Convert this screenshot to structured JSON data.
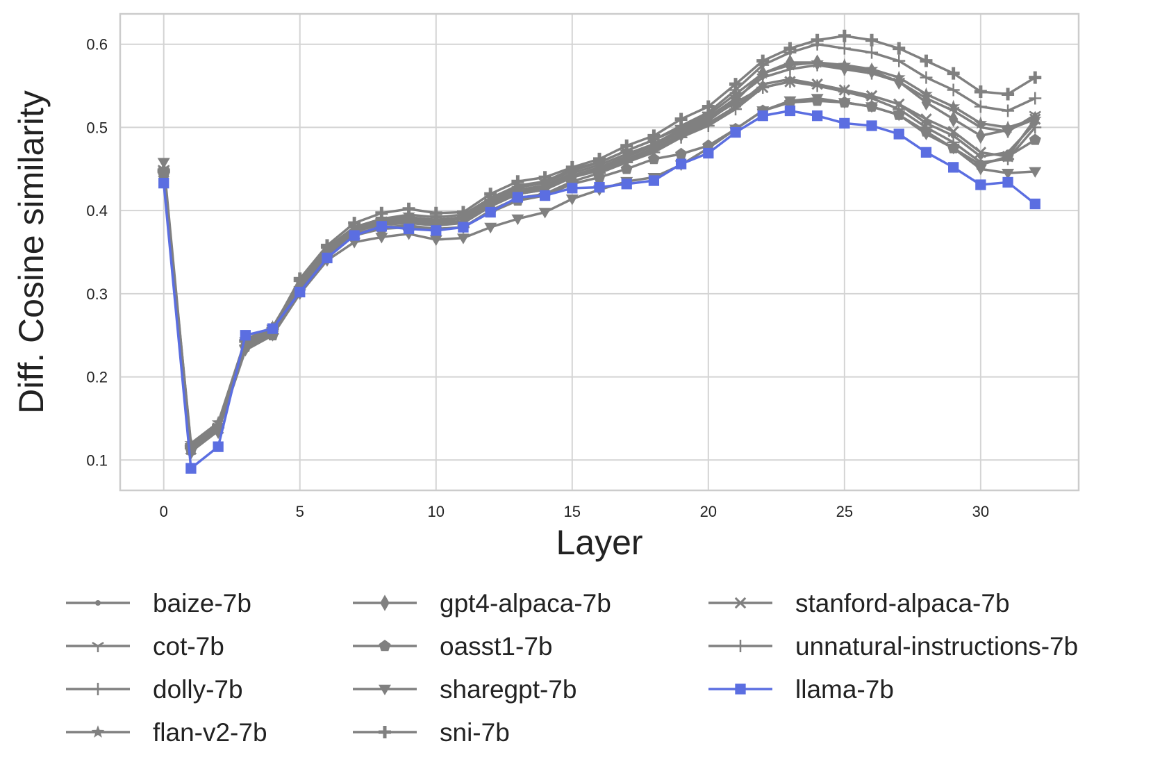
{
  "chart_data": {
    "type": "line",
    "xlabel": "Layer",
    "ylabel": "Diff. Cosine similarity",
    "xlim": [
      -1.6,
      33.6
    ],
    "ylim": [
      0.0635,
      0.6365
    ],
    "x_ticks": [
      0,
      5,
      10,
      15,
      20,
      25,
      30
    ],
    "y_ticks": [
      0.1,
      0.2,
      0.3,
      0.4,
      0.5,
      0.6
    ],
    "y_tick_labels": [
      "0.1",
      "0.2",
      "0.3",
      "0.4",
      "0.5",
      "0.6"
    ],
    "grid": true,
    "legend_position": "bottom",
    "legend_columns": 3,
    "x": [
      0,
      1,
      2,
      3,
      4,
      5,
      6,
      7,
      8,
      9,
      10,
      11,
      12,
      13,
      14,
      15,
      16,
      17,
      18,
      19,
      20,
      21,
      22,
      23,
      24,
      25,
      26,
      27,
      28,
      29,
      30,
      31,
      32
    ],
    "series": [
      {
        "name": "baize-7b",
        "marker": "dot",
        "color": "#808080",
        "values": [
          0.445,
          0.115,
          0.138,
          0.24,
          0.255,
          0.31,
          0.35,
          0.375,
          0.384,
          0.386,
          0.383,
          0.385,
          0.405,
          0.42,
          0.425,
          0.44,
          0.448,
          0.46,
          0.472,
          0.49,
          0.505,
          0.525,
          0.552,
          0.558,
          0.552,
          0.545,
          0.538,
          0.528,
          0.505,
          0.49,
          0.465,
          0.47,
          0.505
        ]
      },
      {
        "name": "cot-7b",
        "marker": "tri-down-thin",
        "color": "#808080",
        "values": [
          0.45,
          0.113,
          0.14,
          0.242,
          0.258,
          0.312,
          0.352,
          0.378,
          0.388,
          0.39,
          0.387,
          0.39,
          0.41,
          0.425,
          0.43,
          0.445,
          0.455,
          0.468,
          0.48,
          0.498,
          0.512,
          0.535,
          0.56,
          0.57,
          0.575,
          0.57,
          0.565,
          0.555,
          0.535,
          0.52,
          0.5,
          0.495,
          0.515
        ]
      },
      {
        "name": "dolly-7b",
        "marker": "plus",
        "color": "#808080",
        "values": [
          0.446,
          0.118,
          0.142,
          0.238,
          0.252,
          0.308,
          0.348,
          0.372,
          0.38,
          0.382,
          0.378,
          0.38,
          0.4,
          0.415,
          0.42,
          0.435,
          0.445,
          0.458,
          0.47,
          0.488,
          0.502,
          0.522,
          0.548,
          0.555,
          0.55,
          0.543,
          0.535,
          0.522,
          0.5,
          0.482,
          0.458,
          0.462,
          0.5
        ]
      },
      {
        "name": "flan-v2-7b",
        "marker": "star",
        "color": "#808080",
        "values": [
          0.448,
          0.12,
          0.145,
          0.245,
          0.26,
          0.315,
          0.355,
          0.38,
          0.39,
          0.395,
          0.392,
          0.395,
          0.415,
          0.43,
          0.435,
          0.45,
          0.458,
          0.472,
          0.485,
          0.5,
          0.515,
          0.54,
          0.565,
          0.575,
          0.578,
          0.575,
          0.57,
          0.56,
          0.54,
          0.525,
          0.505,
          0.5,
          0.51
        ]
      },
      {
        "name": "gpt4-alpaca-7b",
        "marker": "diamond",
        "color": "#808080",
        "values": [
          0.447,
          0.11,
          0.135,
          0.24,
          0.255,
          0.31,
          0.35,
          0.375,
          0.383,
          0.385,
          0.382,
          0.385,
          0.405,
          0.42,
          0.425,
          0.44,
          0.45,
          0.462,
          0.475,
          0.492,
          0.508,
          0.532,
          0.565,
          0.578,
          0.578,
          0.572,
          0.568,
          0.555,
          0.53,
          0.51,
          0.49,
          0.497,
          0.51
        ]
      },
      {
        "name": "oasst1-7b",
        "marker": "pentagon",
        "color": "#808080",
        "values": [
          0.443,
          0.112,
          0.137,
          0.236,
          0.25,
          0.305,
          0.345,
          0.37,
          0.378,
          0.38,
          0.377,
          0.38,
          0.398,
          0.412,
          0.418,
          0.432,
          0.44,
          0.45,
          0.462,
          0.468,
          0.478,
          0.498,
          0.52,
          0.53,
          0.532,
          0.53,
          0.525,
          0.515,
          0.495,
          0.475,
          0.455,
          0.465,
          0.485
        ]
      },
      {
        "name": "sharegpt-7b",
        "marker": "tri-down",
        "color": "#808080",
        "values": [
          0.458,
          0.115,
          0.135,
          0.232,
          0.25,
          0.3,
          0.34,
          0.362,
          0.368,
          0.372,
          0.365,
          0.367,
          0.38,
          0.39,
          0.398,
          0.414,
          0.425,
          0.435,
          0.44,
          0.455,
          0.475,
          0.498,
          0.52,
          0.532,
          0.535,
          0.53,
          0.525,
          0.515,
          0.492,
          0.475,
          0.45,
          0.445,
          0.447
        ]
      },
      {
        "name": "sni-7b",
        "marker": "plus-filled",
        "color": "#808080",
        "values": [
          0.448,
          0.115,
          0.14,
          0.243,
          0.258,
          0.318,
          0.358,
          0.385,
          0.397,
          0.402,
          0.397,
          0.398,
          0.42,
          0.435,
          0.44,
          0.452,
          0.462,
          0.478,
          0.49,
          0.51,
          0.525,
          0.552,
          0.58,
          0.595,
          0.605,
          0.61,
          0.605,
          0.595,
          0.58,
          0.565,
          0.543,
          0.54,
          0.56
        ]
      },
      {
        "name": "stanford-alpaca-7b",
        "marker": "x",
        "color": "#808080",
        "values": [
          0.446,
          0.113,
          0.138,
          0.242,
          0.256,
          0.312,
          0.352,
          0.378,
          0.386,
          0.388,
          0.385,
          0.387,
          0.408,
          0.422,
          0.428,
          0.442,
          0.452,
          0.465,
          0.478,
          0.495,
          0.51,
          0.53,
          0.548,
          0.555,
          0.552,
          0.545,
          0.538,
          0.528,
          0.51,
          0.495,
          0.47,
          0.465,
          0.51
        ]
      },
      {
        "name": "unnatural-instructions-7b",
        "marker": "plus",
        "color": "#808080",
        "values": [
          0.448,
          0.117,
          0.142,
          0.244,
          0.258,
          0.315,
          0.355,
          0.38,
          0.39,
          0.392,
          0.389,
          0.392,
          0.412,
          0.428,
          0.433,
          0.448,
          0.458,
          0.472,
          0.485,
          0.502,
          0.518,
          0.545,
          0.575,
          0.59,
          0.6,
          0.595,
          0.59,
          0.58,
          0.56,
          0.545,
          0.525,
          0.52,
          0.535
        ]
      },
      {
        "name": "llama-7b",
        "marker": "square",
        "color": "#5b6ee1",
        "values": [
          0.433,
          0.09,
          0.116,
          0.25,
          0.258,
          0.302,
          0.343,
          0.37,
          0.381,
          0.378,
          0.376,
          0.38,
          0.398,
          0.416,
          0.418,
          0.427,
          0.428,
          0.432,
          0.436,
          0.456,
          0.469,
          0.494,
          0.514,
          0.52,
          0.514,
          0.505,
          0.502,
          0.492,
          0.47,
          0.452,
          0.431,
          0.434,
          0.408
        ]
      }
    ]
  }
}
